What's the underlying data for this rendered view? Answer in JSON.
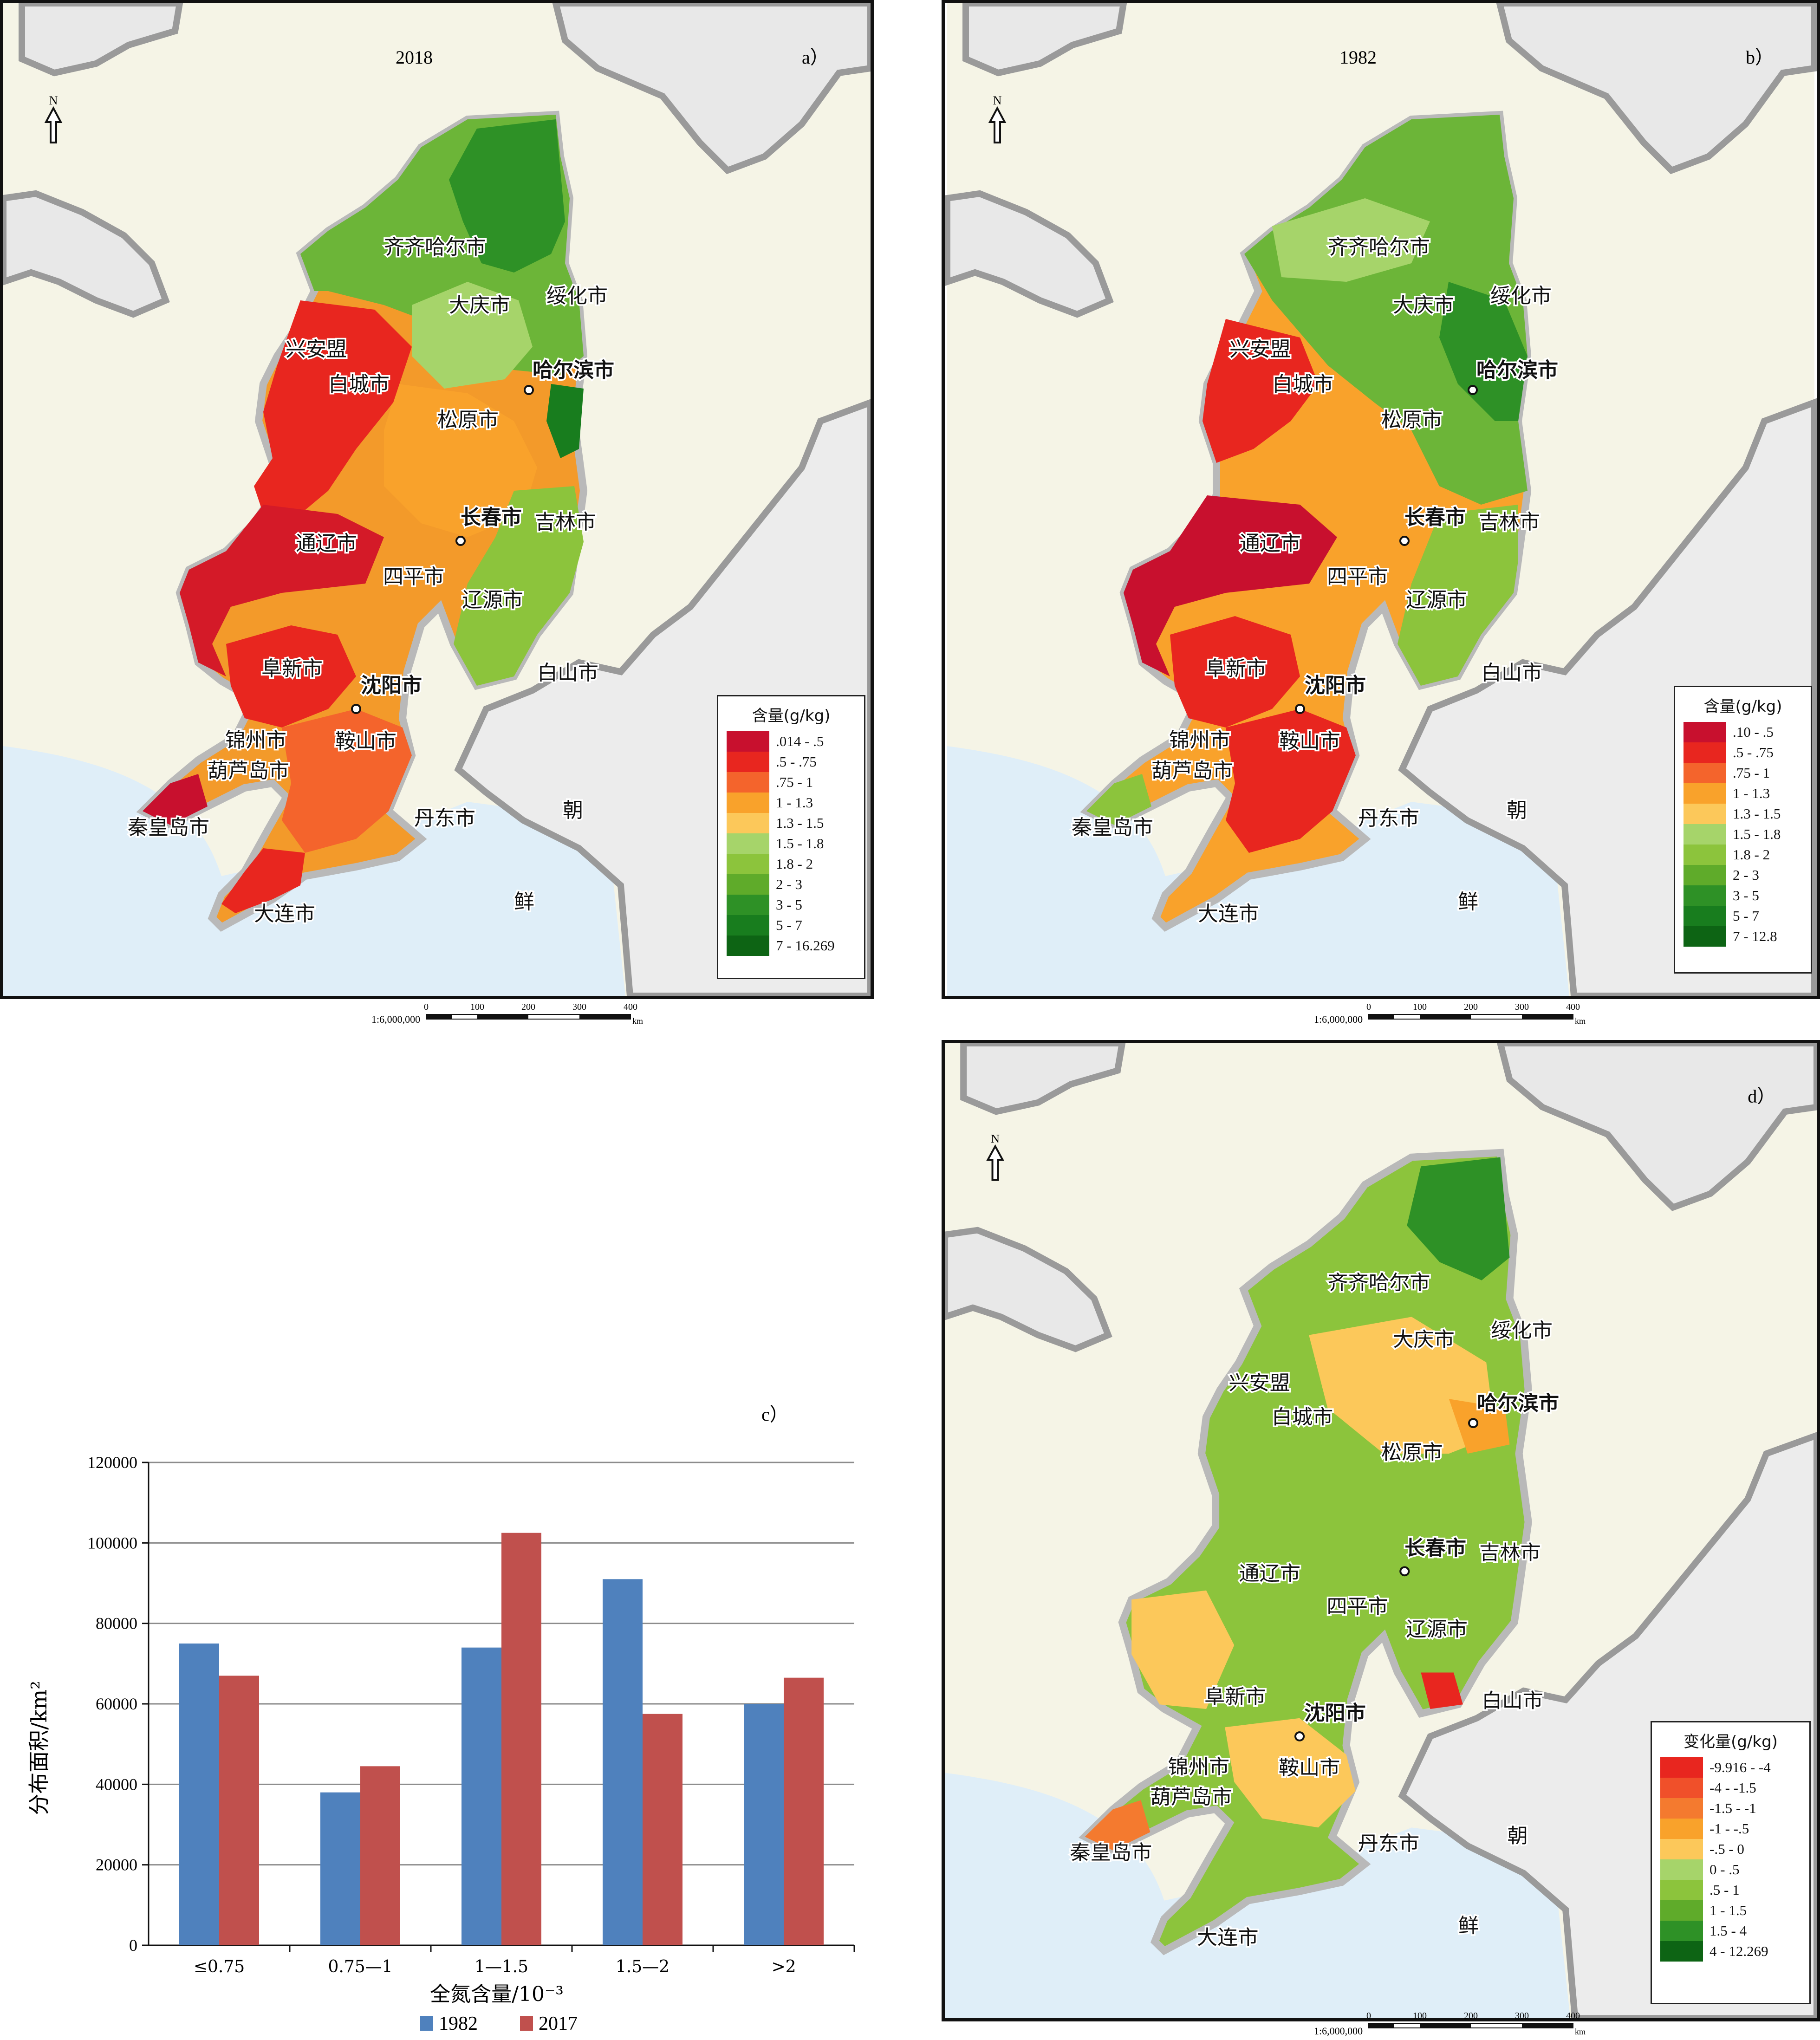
{
  "panels": {
    "a": {
      "year": "2018",
      "letter": "a）",
      "legend_title": "含量(g/kg)",
      "legend": [
        {
          "label": ".014 - .5",
          "color": "#c8102e"
        },
        {
          "label": ".5 - .75",
          "color": "#e8261f"
        },
        {
          "label": ".75 - 1",
          "color": "#f4642c"
        },
        {
          "label": "1 - 1.3",
          "color": "#f9a22b"
        },
        {
          "label": "1.3 - 1.5",
          "color": "#fcc85a"
        },
        {
          "label": "1.5 - 1.8",
          "color": "#a6d46a"
        },
        {
          "label": "1.8 - 2",
          "color": "#8cc43c"
        },
        {
          "label": "2 - 3",
          "color": "#5fab2a"
        },
        {
          "label": "3 - 5",
          "color": "#2e9126"
        },
        {
          "label": "5 - 7",
          "color": "#187d1e"
        },
        {
          "label": "7 - 16.269",
          "color": "#0d6414"
        }
      ]
    },
    "b": {
      "year": "1982",
      "letter": "b）",
      "legend_title": "含量(g/kg)",
      "legend": [
        {
          "label": ".10 - .5",
          "color": "#c8102e"
        },
        {
          "label": ".5 - .75",
          "color": "#e8261f"
        },
        {
          "label": ".75 - 1",
          "color": "#f4642c"
        },
        {
          "label": "1 - 1.3",
          "color": "#f9a22b"
        },
        {
          "label": "1.3 - 1.5",
          "color": "#fcc85a"
        },
        {
          "label": "1.5 - 1.8",
          "color": "#a6d46a"
        },
        {
          "label": "1.8 - 2",
          "color": "#8cc43c"
        },
        {
          "label": "2 - 3",
          "color": "#5fab2a"
        },
        {
          "label": "3 - 5",
          "color": "#2e9126"
        },
        {
          "label": "5 - 7",
          "color": "#187d1e"
        },
        {
          "label": "7 - 12.8",
          "color": "#0d6414"
        }
      ]
    },
    "d": {
      "letter": "d）",
      "legend_title": "变化量(g/kg)",
      "legend": [
        {
          "label": "-9.916 - -4",
          "color": "#e8261f"
        },
        {
          "label": "-4 - -1.5",
          "color": "#f0502a"
        },
        {
          "label": "-1.5 - -1",
          "color": "#f47a2f"
        },
        {
          "label": "-1 - -.5",
          "color": "#f9a22b"
        },
        {
          "label": "-.5 - 0",
          "color": "#fcc85a"
        },
        {
          "label": "0 - .5",
          "color": "#a6d46a"
        },
        {
          "label": ".5 - 1",
          "color": "#8cc43c"
        },
        {
          "label": "1 - 1.5",
          "color": "#5fab2a"
        },
        {
          "label": "1.5 - 4",
          "color": "#2e9126"
        },
        {
          "label": "4 - 12.269",
          "color": "#0d6414"
        }
      ]
    }
  },
  "cities": {
    "qiqihaer": "齐齐哈尔市",
    "daqing": "大庆市",
    "suihua": "绥化市",
    "xinganmeng": "兴安盟",
    "haerbin": "哈尔滨市",
    "baicheng": "白城市",
    "songyuan": "松原市",
    "changchun": "长春市",
    "jilin": "吉林市",
    "tongliao": "通辽市",
    "siping": "四平市",
    "liaoyuan": "辽源市",
    "baishan": "白山市",
    "fuxin": "阜新市",
    "shenyang": "沈阳市",
    "jinzhou": "锦州市",
    "anshan": "鞍山市",
    "huludao": "葫芦岛市",
    "qinhuangdao": "秦皇岛市",
    "dandong": "丹东市",
    "dalian": "大连市",
    "chao": "朝",
    "xian": "鲜"
  },
  "north_label": "N",
  "scale": {
    "ratio": "1:6,000,000",
    "ticks": [
      "0",
      "100",
      "200",
      "300",
      "400"
    ],
    "unit": "km"
  },
  "chart_data": {
    "type": "bar",
    "panel_letter": "c）",
    "categories": [
      "≤0.75",
      "0.75—1",
      "1—1.5",
      "1.5—2",
      ">2"
    ],
    "series": [
      {
        "name": "1982",
        "values": [
          75000,
          38000,
          74000,
          91000,
          60000
        ],
        "color": "#4f81bd"
      },
      {
        "name": "2017",
        "values": [
          67000,
          44500,
          102500,
          57500,
          66500
        ],
        "color": "#c0504d"
      }
    ],
    "xlabel": "全氮含量/10⁻³",
    "ylabel": "分布面积/km²",
    "ylim": [
      0,
      120000
    ],
    "yticks": [
      "0",
      "20000",
      "40000",
      "60000",
      "80000",
      "100000",
      "120000"
    ],
    "grid": true,
    "legend_position": "bottom"
  }
}
